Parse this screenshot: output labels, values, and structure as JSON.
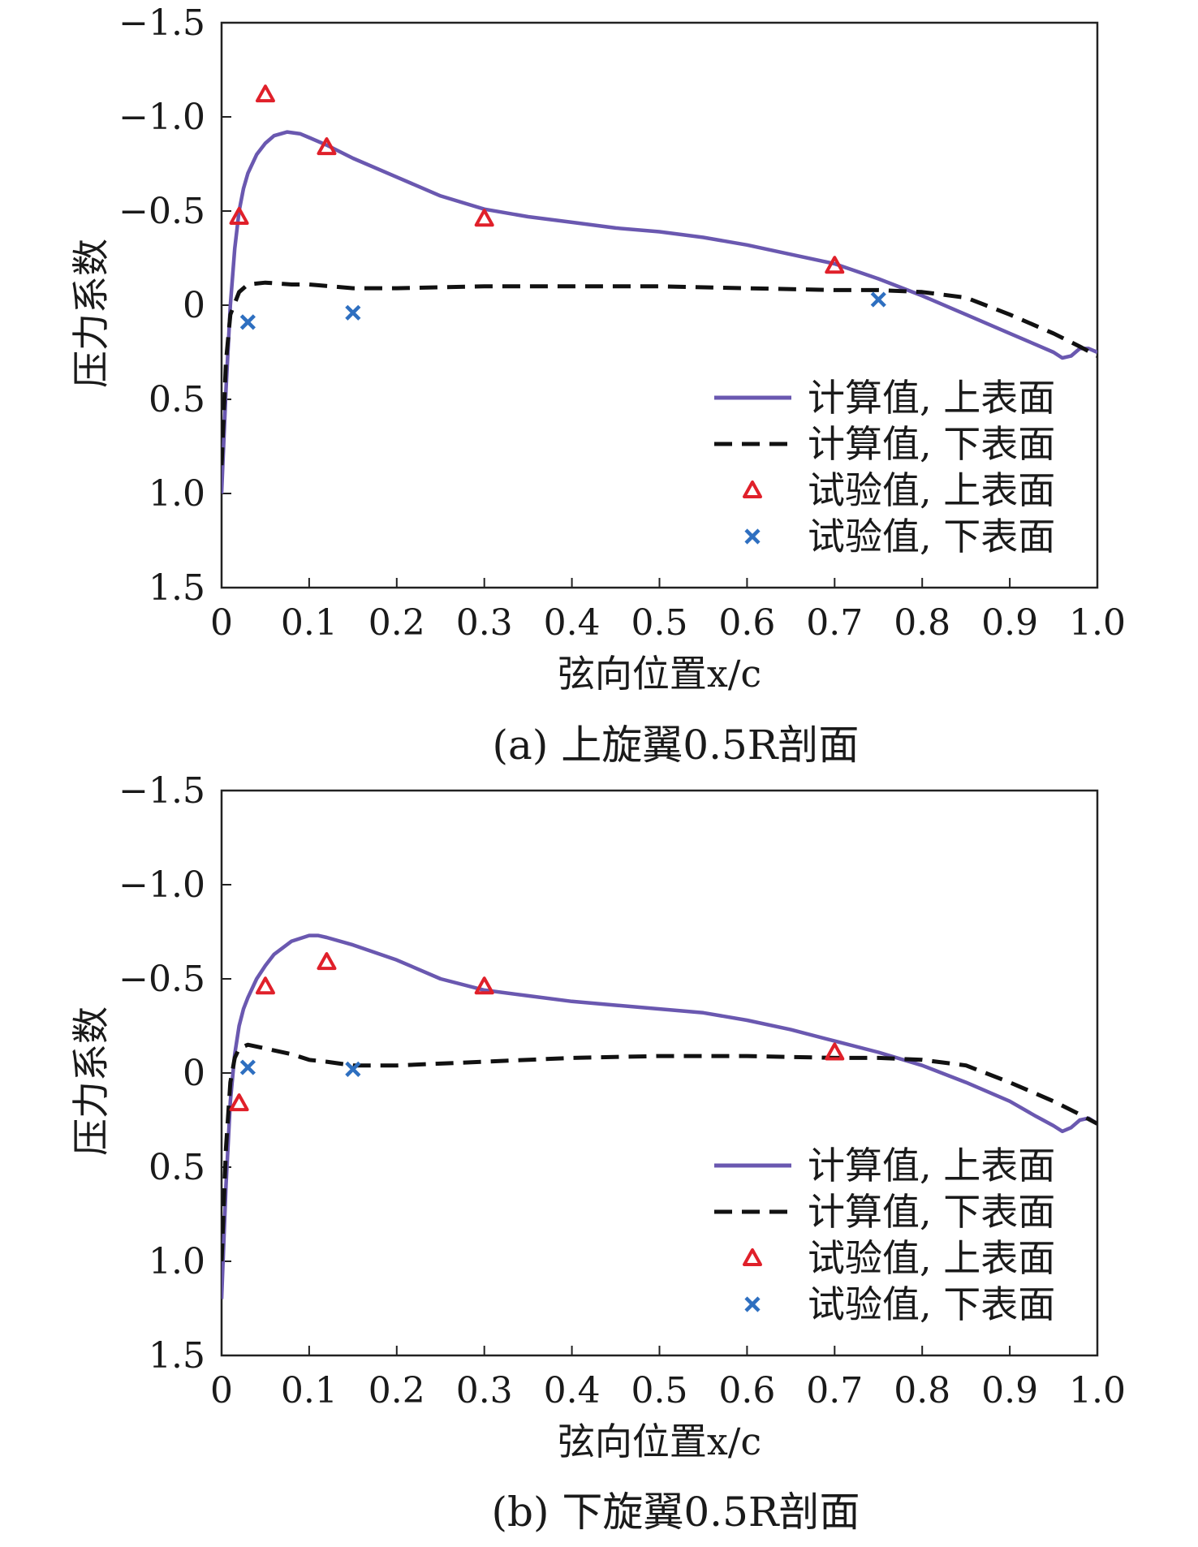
{
  "chart_data": [
    {
      "type": "line",
      "caption": "(a) 上旋翼0.5R剖面",
      "xlabel": "弦向位置x/c",
      "ylabel": "压力系数",
      "xlim": [
        0,
        1.0
      ],
      "ylim": [
        -1.5,
        1.5
      ],
      "y_inverted": true,
      "xticks": [
        "0",
        "0.1",
        "0.2",
        "0.3",
        "0.4",
        "0.5",
        "0.6",
        "0.7",
        "0.8",
        "0.9",
        "1.0"
      ],
      "yticks": [
        "−1.5",
        "−1.0",
        "−0.5",
        "0",
        "0.5",
        "1.0",
        "1.5"
      ],
      "legend_position": "lower-right",
      "colors": {
        "calc_upper": "#6a58b0",
        "calc_lower": "#111111",
        "exp_upper": "#e0202a",
        "exp_lower": "#2e6fc0"
      },
      "series": [
        {
          "name": "计算值, 上表面",
          "style": "solid",
          "x": [
            0.0,
            0.005,
            0.01,
            0.015,
            0.02,
            0.025,
            0.03,
            0.04,
            0.05,
            0.06,
            0.075,
            0.09,
            0.1,
            0.12,
            0.15,
            0.2,
            0.25,
            0.3,
            0.35,
            0.4,
            0.45,
            0.5,
            0.55,
            0.6,
            0.65,
            0.7,
            0.75,
            0.8,
            0.85,
            0.9,
            0.93,
            0.95,
            0.96,
            0.97,
            0.98,
            0.99,
            1.0
          ],
          "y": [
            1.0,
            0.45,
            0.0,
            -0.3,
            -0.5,
            -0.62,
            -0.7,
            -0.8,
            -0.86,
            -0.9,
            -0.92,
            -0.91,
            -0.89,
            -0.85,
            -0.78,
            -0.68,
            -0.58,
            -0.51,
            -0.47,
            -0.44,
            -0.41,
            -0.39,
            -0.36,
            -0.32,
            -0.27,
            -0.22,
            -0.14,
            -0.05,
            0.05,
            0.15,
            0.21,
            0.25,
            0.28,
            0.27,
            0.23,
            0.23,
            0.25
          ]
        },
        {
          "name": "计算值, 下表面",
          "style": "dashed",
          "x": [
            0.0,
            0.005,
            0.01,
            0.02,
            0.03,
            0.05,
            0.08,
            0.1,
            0.15,
            0.2,
            0.3,
            0.4,
            0.5,
            0.6,
            0.7,
            0.75,
            0.8,
            0.85,
            0.9,
            0.95,
            0.98,
            1.0
          ],
          "y": [
            0.85,
            0.3,
            0.05,
            -0.07,
            -0.11,
            -0.12,
            -0.11,
            -0.11,
            -0.09,
            -0.09,
            -0.1,
            -0.1,
            -0.1,
            -0.09,
            -0.08,
            -0.08,
            -0.07,
            -0.04,
            0.05,
            0.15,
            0.22,
            0.27
          ]
        },
        {
          "name": "试验值, 上表面",
          "style": "triangle",
          "x": [
            0.02,
            0.05,
            0.12,
            0.3,
            0.7
          ],
          "y": [
            -0.47,
            -1.12,
            -0.84,
            -0.46,
            -0.21
          ]
        },
        {
          "name": "试验值, 下表面",
          "style": "cross",
          "x": [
            0.03,
            0.15,
            0.75
          ],
          "y": [
            0.09,
            0.04,
            -0.03
          ]
        }
      ]
    },
    {
      "type": "line",
      "caption": "(b) 下旋翼0.5R剖面",
      "xlabel": "弦向位置x/c",
      "ylabel": "压力系数",
      "xlim": [
        0,
        1.0
      ],
      "ylim": [
        -1.5,
        1.5
      ],
      "y_inverted": true,
      "xticks": [
        "0",
        "0.1",
        "0.2",
        "0.3",
        "0.4",
        "0.5",
        "0.6",
        "0.7",
        "0.8",
        "0.9",
        "1.0"
      ],
      "yticks": [
        "−1.5",
        "−1.0",
        "−0.5",
        "0",
        "0.5",
        "1.0",
        "1.5"
      ],
      "legend_position": "lower-right",
      "colors": {
        "calc_upper": "#6a58b0",
        "calc_lower": "#111111",
        "exp_upper": "#e0202a",
        "exp_lower": "#2e6fc0"
      },
      "series": [
        {
          "name": "计算值, 上表面",
          "style": "solid",
          "x": [
            0.0,
            0.005,
            0.01,
            0.015,
            0.02,
            0.025,
            0.03,
            0.04,
            0.05,
            0.06,
            0.08,
            0.1,
            0.11,
            0.12,
            0.15,
            0.2,
            0.25,
            0.3,
            0.35,
            0.4,
            0.45,
            0.5,
            0.55,
            0.6,
            0.65,
            0.7,
            0.75,
            0.8,
            0.85,
            0.9,
            0.93,
            0.95,
            0.96,
            0.97,
            0.98,
            0.99,
            1.0
          ],
          "y": [
            1.2,
            0.6,
            0.15,
            -0.1,
            -0.25,
            -0.34,
            -0.4,
            -0.5,
            -0.57,
            -0.63,
            -0.7,
            -0.73,
            -0.73,
            -0.72,
            -0.68,
            -0.6,
            -0.5,
            -0.44,
            -0.41,
            -0.38,
            -0.36,
            -0.34,
            -0.32,
            -0.28,
            -0.23,
            -0.17,
            -0.11,
            -0.04,
            0.05,
            0.15,
            0.23,
            0.28,
            0.31,
            0.29,
            0.25,
            0.24,
            0.27
          ]
        },
        {
          "name": "计算值, 下表面",
          "style": "dashed",
          "x": [
            0.0,
            0.005,
            0.01,
            0.015,
            0.02,
            0.03,
            0.05,
            0.08,
            0.1,
            0.12,
            0.15,
            0.2,
            0.3,
            0.4,
            0.5,
            0.6,
            0.7,
            0.75,
            0.8,
            0.85,
            0.9,
            0.95,
            0.98,
            1.0
          ],
          "y": [
            1.0,
            0.4,
            0.05,
            -0.08,
            -0.13,
            -0.15,
            -0.13,
            -0.1,
            -0.07,
            -0.06,
            -0.04,
            -0.04,
            -0.06,
            -0.08,
            -0.09,
            -0.09,
            -0.08,
            -0.08,
            -0.07,
            -0.04,
            0.05,
            0.15,
            0.22,
            0.27
          ]
        },
        {
          "name": "试验值, 上表面",
          "style": "triangle",
          "x": [
            0.02,
            0.05,
            0.12,
            0.3,
            0.7
          ],
          "y": [
            0.16,
            -0.46,
            -0.59,
            -0.46,
            -0.11
          ]
        },
        {
          "name": "试验值, 下表面",
          "style": "cross",
          "x": [
            0.03,
            0.15
          ],
          "y": [
            -0.03,
            -0.02
          ]
        }
      ]
    }
  ]
}
